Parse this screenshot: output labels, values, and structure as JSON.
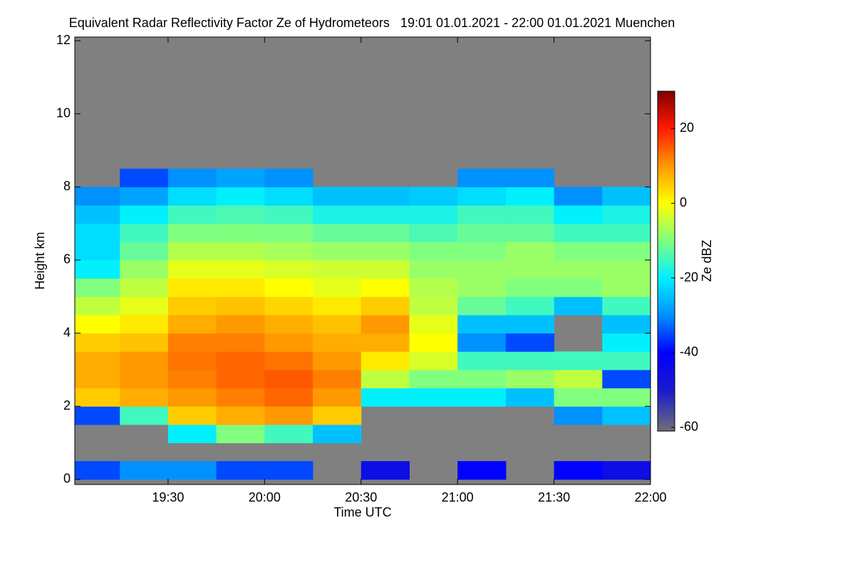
{
  "chart_data": {
    "type": "heatmap",
    "title": "Equivalent Radar Reflectivity Factor Ze of Hydrometeors   19:01 01.01.2021 - 22:00 01.01.2021 Muenchen",
    "x_label": "Time UTC",
    "y_label": "Height km",
    "colorbar_label": "Ze dBZ",
    "x": [
      19.125,
      19.375,
      19.625,
      19.875,
      20.125,
      20.375,
      20.625,
      20.875,
      21.125,
      21.375,
      21.625,
      21.875
    ],
    "y": [
      0.25,
      0.75,
      1.25,
      1.75,
      2.25,
      2.75,
      3.25,
      3.75,
      4.25,
      4.75,
      5.25,
      5.75,
      6.25,
      6.75,
      7.25,
      7.75,
      8.25,
      8.75
    ],
    "z": [
      [
        -35,
        -30,
        -30,
        -35,
        -35,
        null,
        -45,
        null,
        -40,
        null,
        -40,
        -45
      ],
      [
        null,
        null,
        null,
        null,
        null,
        null,
        null,
        null,
        null,
        null,
        null,
        null
      ],
      [
        null,
        null,
        -20,
        -10,
        -15,
        -25,
        null,
        null,
        null,
        null,
        null,
        null
      ],
      [
        -35,
        -15,
        5,
        8,
        10,
        5,
        null,
        null,
        null,
        null,
        -30,
        -25
      ],
      [
        5,
        8,
        10,
        12,
        14,
        10,
        -20,
        -20,
        -20,
        -25,
        -10,
        -10
      ],
      [
        8,
        10,
        12,
        14,
        15,
        12,
        -5,
        -10,
        -10,
        -8,
        -5,
        -35
      ],
      [
        8,
        10,
        13,
        14,
        13,
        10,
        2,
        -3,
        -15,
        -15,
        -15,
        -15
      ],
      [
        5,
        6,
        12,
        12,
        10,
        8,
        8,
        0,
        -30,
        -35,
        null,
        -20
      ],
      [
        0,
        2,
        8,
        10,
        8,
        6,
        10,
        -2,
        -25,
        -25,
        null,
        -25
      ],
      [
        -5,
        -2,
        5,
        6,
        4,
        2,
        5,
        -5,
        -12,
        -15,
        -25,
        -15
      ],
      [
        -10,
        -5,
        2,
        2,
        0,
        -2,
        0,
        -6,
        -8,
        -10,
        -10,
        -8
      ],
      [
        -20,
        -8,
        -2,
        -2,
        -3,
        -4,
        -4,
        -8,
        -8,
        -8,
        -8,
        -8
      ],
      [
        -22,
        -12,
        -6,
        -6,
        -7,
        -8,
        -8,
        -10,
        -10,
        -8,
        -10,
        -10
      ],
      [
        -22,
        -15,
        -10,
        -10,
        -10,
        -12,
        -12,
        -14,
        -12,
        -12,
        -15,
        -15
      ],
      [
        -25,
        -20,
        -15,
        -14,
        -15,
        -18,
        -18,
        -18,
        -15,
        -15,
        -20,
        -18
      ],
      [
        -30,
        -28,
        -22,
        -20,
        -22,
        -25,
        -25,
        -24,
        -22,
        -20,
        -30,
        -25
      ],
      [
        null,
        -35,
        -30,
        -28,
        -30,
        null,
        null,
        null,
        -30,
        -30,
        null,
        null
      ],
      [
        null,
        null,
        null,
        null,
        null,
        null,
        null,
        null,
        null,
        null,
        null,
        null
      ]
    ],
    "xlim": [
      19.0167,
      22.0
    ],
    "xticks": [
      {
        "value": 19.5,
        "label": "19:30"
      },
      {
        "value": 20.0,
        "label": "20:00"
      },
      {
        "value": 20.5,
        "label": "20:30"
      },
      {
        "value": 21.0,
        "label": "21:00"
      },
      {
        "value": 21.5,
        "label": "21:30"
      },
      {
        "value": 22.0,
        "label": "22:00"
      }
    ],
    "ylim": [
      -0.14,
      12.1
    ],
    "yticks": [
      0,
      2,
      4,
      6,
      8,
      10,
      12
    ],
    "zlim": [
      -61,
      30
    ],
    "zticks": [
      -60,
      -40,
      -20,
      0,
      20
    ],
    "background_color": "#808080"
  }
}
